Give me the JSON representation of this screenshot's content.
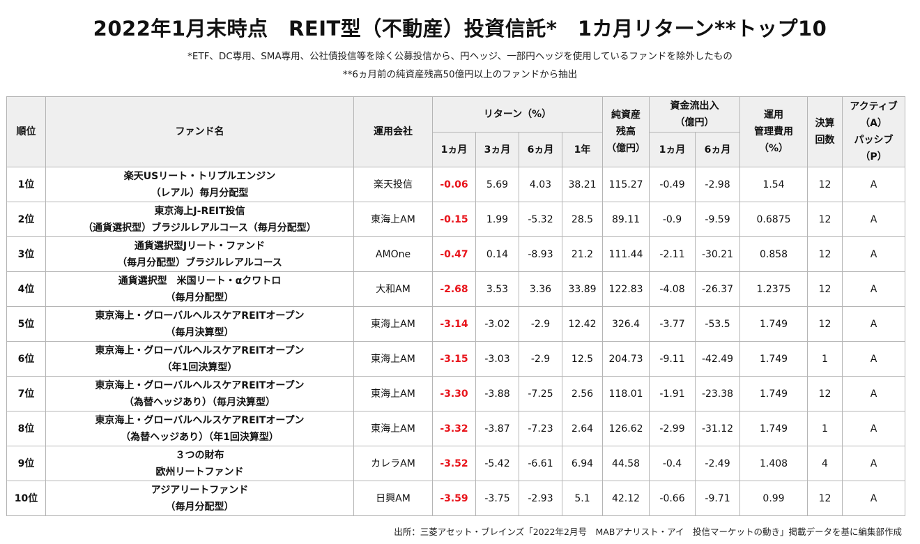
{
  "title": "2022年1月末時点　REIT型（不動産）投資信託*　1カ月リターン**トップ10",
  "notes": [
    "*ETF、DC専用、SMA専用、公社債投信等を除く公募投信から、円ヘッジ、一部円ヘッジを使用しているファンドを除外したもの",
    "**6ヵ月前の純資産残高50億円以上のファンドから抽出"
  ],
  "headers": {
    "rank": "順位",
    "fund": "ファンド名",
    "company": "運用会社",
    "return_group": "リターン（%）",
    "ret_1m": "1ヵ月",
    "ret_3m": "3ヵ月",
    "ret_6m": "6ヵ月",
    "ret_1y": "1年",
    "nav": [
      "純資産",
      "残高",
      "（億円）"
    ],
    "flow_group": [
      "資金流出入",
      "（億円）"
    ],
    "flow_1m": "1ヵ月",
    "flow_6m": "6ヵ月",
    "fee": [
      "運用",
      "管理費用",
      "（%）"
    ],
    "settle": [
      "決算",
      "回数"
    ],
    "ap": [
      "アクティブ",
      "（A）",
      "パッシブ",
      "（P）"
    ]
  },
  "rows": [
    {
      "rank": "1位",
      "fund": [
        "楽天USリート・トリプルエンジン",
        "（レアル）毎月分配型"
      ],
      "company": "楽天投信",
      "r1m": "-0.06",
      "r3m": "5.69",
      "r6m": "4.03",
      "r1y": "38.21",
      "nav": "115.27",
      "f1m": "-0.49",
      "f6m": "-2.98",
      "fee": "1.54",
      "settle": "12",
      "ap": "A"
    },
    {
      "rank": "2位",
      "fund": [
        "東京海上J-REIT投信",
        "（通貨選択型）ブラジルレアルコース（毎月分配型）"
      ],
      "company": "東海上AM",
      "r1m": "-0.15",
      "r3m": "1.99",
      "r6m": "-5.32",
      "r1y": "28.5",
      "nav": "89.11",
      "f1m": "-0.9",
      "f6m": "-9.59",
      "fee": "0.6875",
      "settle": "12",
      "ap": "A"
    },
    {
      "rank": "3位",
      "fund": [
        "通貨選択型Jリート・ファンド",
        "（毎月分配型）ブラジルレアルコース"
      ],
      "company": "AMOne",
      "r1m": "-0.47",
      "r3m": "0.14",
      "r6m": "-8.93",
      "r1y": "21.2",
      "nav": "111.44",
      "f1m": "-2.11",
      "f6m": "-30.21",
      "fee": "0.858",
      "settle": "12",
      "ap": "A"
    },
    {
      "rank": "4位",
      "fund": [
        "通貨選択型　米国リート・αクワトロ",
        "（毎月分配型）"
      ],
      "company": "大和AM",
      "r1m": "-2.68",
      "r3m": "3.53",
      "r6m": "3.36",
      "r1y": "33.89",
      "nav": "122.83",
      "f1m": "-4.08",
      "f6m": "-26.37",
      "fee": "1.2375",
      "settle": "12",
      "ap": "A"
    },
    {
      "rank": "5位",
      "fund": [
        "東京海上・グローバルヘルスケアREITオープン",
        "（毎月決算型）"
      ],
      "company": "東海上AM",
      "r1m": "-3.14",
      "r3m": "-3.02",
      "r6m": "-2.9",
      "r1y": "12.42",
      "nav": "326.4",
      "f1m": "-3.77",
      "f6m": "-53.5",
      "fee": "1.749",
      "settle": "12",
      "ap": "A"
    },
    {
      "rank": "6位",
      "fund": [
        "東京海上・グローバルヘルスケアREITオープン",
        "（年1回決算型）"
      ],
      "company": "東海上AM",
      "r1m": "-3.15",
      "r3m": "-3.03",
      "r6m": "-2.9",
      "r1y": "12.5",
      "nav": "204.73",
      "f1m": "-9.11",
      "f6m": "-42.49",
      "fee": "1.749",
      "settle": "1",
      "ap": "A"
    },
    {
      "rank": "7位",
      "fund": [
        "東京海上・グローバルヘルスケアREITオープン",
        "（為替ヘッジあり）（毎月決算型）"
      ],
      "company": "東海上AM",
      "r1m": "-3.30",
      "r3m": "-3.88",
      "r6m": "-7.25",
      "r1y": "2.56",
      "nav": "118.01",
      "f1m": "-1.91",
      "f6m": "-23.38",
      "fee": "1.749",
      "settle": "12",
      "ap": "A"
    },
    {
      "rank": "8位",
      "fund": [
        "東京海上・グローバルヘルスケアREITオープン",
        "（為替ヘッジあり）（年1回決算型）"
      ],
      "company": "東海上AM",
      "r1m": "-3.32",
      "r3m": "-3.87",
      "r6m": "-7.23",
      "r1y": "2.64",
      "nav": "126.62",
      "f1m": "-2.99",
      "f6m": "-31.12",
      "fee": "1.749",
      "settle": "1",
      "ap": "A"
    },
    {
      "rank": "9位",
      "fund": [
        "３つの財布",
        "欧州リートファンド"
      ],
      "company": "カレラAM",
      "r1m": "-3.52",
      "r3m": "-5.42",
      "r6m": "-6.61",
      "r1y": "6.94",
      "nav": "44.58",
      "f1m": "-0.4",
      "f6m": "-2.49",
      "fee": "1.408",
      "settle": "4",
      "ap": "A"
    },
    {
      "rank": "10位",
      "fund": [
        "アジアリートファンド",
        "（毎月分配型）"
      ],
      "company": "日興AM",
      "r1m": "-3.59",
      "r3m": "-3.75",
      "r6m": "-2.93",
      "r1y": "5.1",
      "nav": "42.12",
      "f1m": "-0.66",
      "f6m": "-9.71",
      "fee": "0.99",
      "settle": "12",
      "ap": "A"
    }
  ],
  "source": "出所：三菱アセット・ブレインズ「2022年2月号　MABアナリスト・アイ　投信マーケットの動き」掲載データを基に編集部作成",
  "colors": {
    "negative_return": "#e8141b",
    "header_bg": "#efefef",
    "border": "#b5b5b5"
  }
}
